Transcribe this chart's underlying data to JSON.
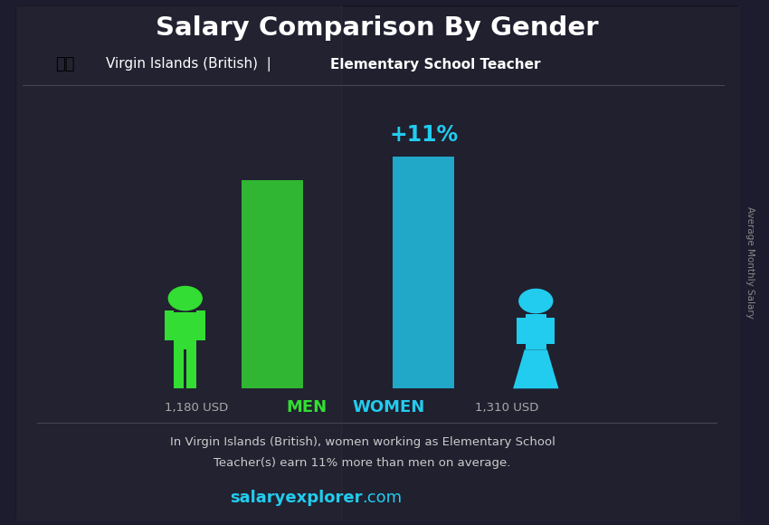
{
  "title": "Salary Comparison By Gender",
  "subtitle_country": "Virgin Islands (British)",
  "subtitle_job": "Elementary School Teacher",
  "men_salary": 1180,
  "women_salary": 1310,
  "men_label": "MEN",
  "women_label": "WOMEN",
  "men_salary_label": "1,180 USD",
  "women_salary_label": "1,310 USD",
  "percent_diff": "+11%",
  "description_line1": "In Virgin Islands (British), women working as Elementary School",
  "description_line2": "Teacher(s) earn 11% more than men on average.",
  "website_bold": "salaryexplorer",
  "website_light": ".com",
  "men_color": "#33dd33",
  "women_color": "#22ccee",
  "bar_men_color": "#33cc33",
  "bar_women_color": "#22bbdd",
  "bg_color": "#1c1c2e",
  "title_color": "#ffffff",
  "subtitle_color": "#ffffff",
  "men_label_color": "#33dd33",
  "women_label_color": "#22ccee",
  "salary_label_color": "#aaaaaa",
  "percent_color": "#22ccee",
  "description_color": "#cccccc",
  "website_color": "#22ccee",
  "ylabel_color": "#888888",
  "ylabel_text": "Average Monthly Salary",
  "men_bar_height": 1180,
  "women_bar_height": 1310,
  "y_max": 1600
}
